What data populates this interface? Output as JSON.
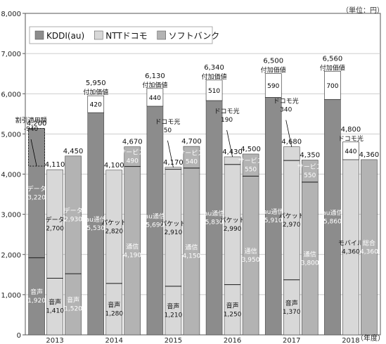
{
  "chart_data": {
    "type": "bar",
    "stacked": true,
    "unit_label": "（単位：円）",
    "x_unit_label": "（年度）",
    "ylim": [
      0,
      8000
    ],
    "y_ticks": [
      "0",
      "1,000",
      "2,000",
      "3,000",
      "4,000",
      "5,000",
      "6,000",
      "7,000",
      "8,000"
    ],
    "categories": [
      "2013",
      "2014",
      "2015",
      "2016",
      "2017",
      "2018"
    ],
    "legend": [
      {
        "key": "kddi",
        "label": "KDDI(au)",
        "color": "#8c8c8c"
      },
      {
        "key": "ntt",
        "label": "NTTドコモ",
        "color": "#d8d8d8"
      },
      {
        "key": "sb",
        "label": "ソフトバンク",
        "color": "#b3b3b3"
      }
    ],
    "colors": {
      "kddi": "#8c8c8c",
      "ntt": "#d8d8d8",
      "sb": "#b3b3b3",
      "box": "#ffffff"
    },
    "bars": [
      {
        "year": "2013",
        "company": "kddi",
        "total": "4,200",
        "segments": [
          {
            "value": 1920,
            "label": "音声\n1,920"
          },
          {
            "value": 3220,
            "label": "データ\n3,220"
          },
          {
            "value": -940
          }
        ],
        "callout": {
          "text": "割引適用額\n-940",
          "y": 4200
        }
      },
      {
        "year": "2013",
        "company": "ntt",
        "total": "4,110",
        "segments": [
          {
            "value": 1410,
            "label": "音声\n1,410"
          },
          {
            "value": 2700,
            "label": "データ\n2,700"
          }
        ]
      },
      {
        "year": "2013",
        "company": "sb",
        "total": "4,450",
        "segments": [
          {
            "value": 1520,
            "label": "音声\n1,520"
          },
          {
            "value": 2930,
            "label": "データ\n2,930"
          }
        ]
      },
      {
        "year": "2014",
        "company": "kddi",
        "total": "5,950",
        "segments": [
          {
            "value": 5530,
            "label": "au通信\n5,530"
          },
          {
            "value": 420,
            "label": "420",
            "boxed": true,
            "above": "付加価値"
          }
        ]
      },
      {
        "year": "2014",
        "company": "ntt",
        "total": "4,100",
        "segments": [
          {
            "value": 1280,
            "label": "音声\n1,280"
          },
          {
            "value": 2820,
            "label": "パケット\n2,820"
          }
        ]
      },
      {
        "year": "2014",
        "company": "sb",
        "total": "4,670",
        "segments": [
          {
            "value": 4190,
            "label": "通信\n4,190"
          },
          {
            "value": 490,
            "label": "サービス\n490"
          }
        ]
      },
      {
        "year": "2015",
        "company": "kddi",
        "total": "6,130",
        "segments": [
          {
            "value": 5690,
            "label": "au通信\n5,690"
          },
          {
            "value": 440,
            "label": "440",
            "boxed": true,
            "above": "付加価値"
          }
        ]
      },
      {
        "year": "2015",
        "company": "ntt",
        "total": "4,170",
        "segments": [
          {
            "value": 1210,
            "label": "音声\n1,210"
          },
          {
            "value": 2910,
            "label": "パケット\n2,910"
          },
          {
            "value": 50
          }
        ],
        "callout": {
          "text": "ドコモ光\n50",
          "y": 4170
        }
      },
      {
        "year": "2015",
        "company": "sb",
        "total": "4,700",
        "segments": [
          {
            "value": 4150,
            "label": "通信\n4,150"
          },
          {
            "value": 540,
            "label": "サービス\n540"
          }
        ]
      },
      {
        "year": "2016",
        "company": "kddi",
        "total": "6,340",
        "segments": [
          {
            "value": 5830,
            "label": "au通信\n5,830"
          },
          {
            "value": 510,
            "label": "510",
            "boxed": true,
            "above": "付加価値"
          }
        ]
      },
      {
        "year": "2016",
        "company": "ntt",
        "total": "4,430",
        "segments": [
          {
            "value": 1250,
            "label": "音声\n1,250"
          },
          {
            "value": 2990,
            "label": "パケット\n2,990"
          },
          {
            "value": 190
          }
        ],
        "callout": {
          "text": "ドコモ光\n190",
          "y": 4430
        }
      },
      {
        "year": "2016",
        "company": "sb",
        "total": "4,500",
        "segments": [
          {
            "value": 3950,
            "label": "通信\n3,950"
          },
          {
            "value": 550,
            "label": "サービス\n550"
          }
        ]
      },
      {
        "year": "2017",
        "company": "kddi",
        "total": "6,500",
        "segments": [
          {
            "value": 5910,
            "label": "au通信\n5,910"
          },
          {
            "value": 590,
            "label": "590",
            "boxed": true,
            "above": "付加価値"
          }
        ]
      },
      {
        "year": "2017",
        "company": "ntt",
        "total": "4,680",
        "segments": [
          {
            "value": 1370,
            "label": "音声\n1,370"
          },
          {
            "value": 2970,
            "label": "パケット\n2,970"
          },
          {
            "value": 340
          }
        ],
        "callout": {
          "text": "ドコモ光\n340",
          "y": 4680
        }
      },
      {
        "year": "2017",
        "company": "sb",
        "total": "4,350",
        "segments": [
          {
            "value": 3800,
            "label": "通信\n3,800"
          },
          {
            "value": 550,
            "label": "サービス\n550"
          }
        ]
      },
      {
        "year": "2018",
        "company": "kddi",
        "total": "6,560",
        "segments": [
          {
            "value": 5860,
            "label": "au通信\n5,860"
          },
          {
            "value": 700,
            "label": "700",
            "boxed": true,
            "above": "付加価値"
          }
        ]
      },
      {
        "year": "2018",
        "company": "ntt",
        "total": "4,800",
        "segments": [
          {
            "value": 4360,
            "label": "モバイル\n4,360"
          },
          {
            "value": 440,
            "label": "440",
            "boxed": true,
            "above": "ドコモ光"
          }
        ]
      },
      {
        "year": "2018",
        "company": "sb",
        "total": "4,360",
        "segments": [
          {
            "value": 4360,
            "label": "総合\n4,360"
          }
        ]
      }
    ]
  }
}
